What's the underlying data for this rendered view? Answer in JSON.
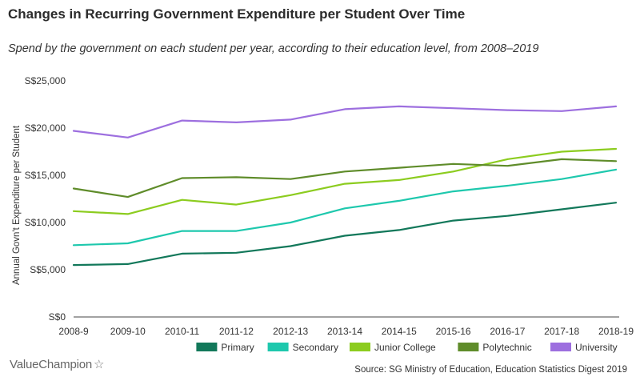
{
  "chart_data": {
    "type": "line",
    "title": "Changes in Recurring Government Expenditure per Student Over Time",
    "subtitle": "Spend by the government on each student per year, according to their education level, from 2008–2019",
    "ylabel": "Annual Govn't Expenditure per Student",
    "xlabel": "",
    "ylim": [
      0,
      25000
    ],
    "yticks": [
      0,
      5000,
      10000,
      15000,
      20000,
      25000
    ],
    "ytick_labels": [
      "S$0",
      "S$5,000",
      "S$10,000",
      "S$15,000",
      "S$20,000",
      "S$25,000"
    ],
    "categories": [
      "2008-9",
      "2009-10",
      "2010-11",
      "2011-12",
      "2012-13",
      "2013-14",
      "2014-15",
      "2015-16",
      "2016-17",
      "2017-18",
      "2018-19"
    ],
    "series": [
      {
        "name": "Primary",
        "color": "#12785a",
        "values": [
          5500,
          5600,
          6700,
          6800,
          7500,
          8600,
          9200,
          10200,
          10700,
          11400,
          12100
        ]
      },
      {
        "name": "Secondary",
        "color": "#1ec8ad",
        "values": [
          7600,
          7800,
          9100,
          9100,
          10000,
          11500,
          12300,
          13300,
          13900,
          14600,
          15600
        ]
      },
      {
        "name": "Junior College",
        "color": "#8ccc1f",
        "values": [
          11200,
          10900,
          12400,
          11900,
          12900,
          14100,
          14500,
          15400,
          16700,
          17500,
          17800
        ]
      },
      {
        "name": "Polytechnic",
        "color": "#5f8c2a",
        "values": [
          13600,
          12700,
          14700,
          14800,
          14600,
          15400,
          15800,
          16200,
          16000,
          16700,
          16500
        ]
      },
      {
        "name": "University",
        "color": "#9d6fdf",
        "values": [
          19700,
          19000,
          20800,
          20600,
          20900,
          22000,
          22300,
          22100,
          21900,
          21800,
          22300
        ]
      }
    ],
    "legend_position": "bottom-right",
    "grid": false
  },
  "branding": {
    "part1": "Value",
    "part2": "Champion",
    "star": "☆"
  },
  "source": "Source: SG Ministry of Education, Education Statistics Digest 2019"
}
